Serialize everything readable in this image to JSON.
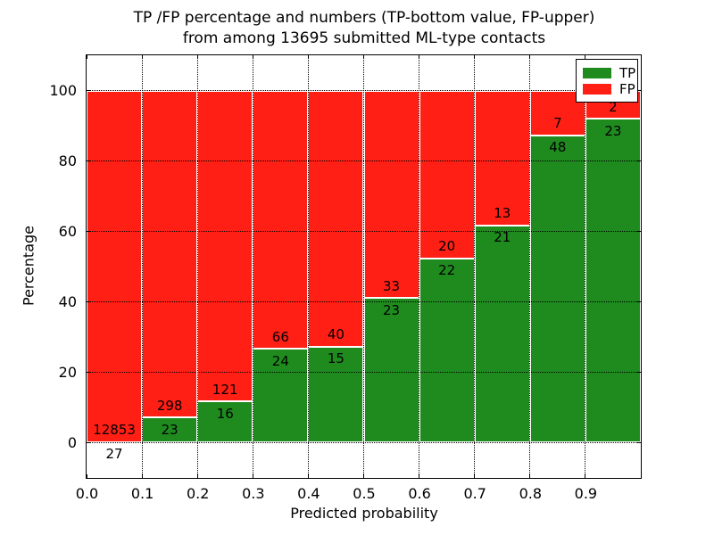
{
  "figure": {
    "background": "#ffffff",
    "frame_color": "#000000"
  },
  "chart_data": {
    "type": "bar",
    "variant": "stacked-percentage",
    "title": "TP /FP percentage and numbers (TP-bottom value, FP-upper)\nfrom among 13695 submitted ML-type contacts",
    "title_line1": "TP /FP percentage and numbers (TP-bottom value, FP-upper)",
    "title_line2": "from among 13695 submitted ML-type contacts",
    "total_submitted": 13695,
    "xlabel": "Predicted probability",
    "ylabel": "Percentage",
    "xlim": [
      0.0,
      1.0
    ],
    "ylim": [
      -10,
      110
    ],
    "bin_width": 0.1,
    "grid": true,
    "x_ticks": [
      "0.0",
      "0.1",
      "0.2",
      "0.3",
      "0.4",
      "0.5",
      "0.6",
      "0.7",
      "0.8",
      "0.9"
    ],
    "y_ticks": [
      "0",
      "20",
      "40",
      "60",
      "80",
      "100"
    ],
    "categories": [
      "0.0-0.1",
      "0.1-0.2",
      "0.2-0.3",
      "0.3-0.4",
      "0.4-0.5",
      "0.5-0.6",
      "0.6-0.7",
      "0.7-0.8",
      "0.8-0.9",
      "0.9-1.0"
    ],
    "series": [
      {
        "name": "TP",
        "color": "#1f8b1f",
        "values": [
          27,
          23,
          16,
          24,
          15,
          23,
          22,
          21,
          48,
          23
        ]
      },
      {
        "name": "FP",
        "color": "#ff1f15",
        "values": [
          12853,
          298,
          121,
          66,
          40,
          33,
          20,
          13,
          7,
          2
        ]
      }
    ],
    "tp_percent": [
      0.21,
      7.17,
      11.68,
      26.67,
      27.27,
      41.07,
      52.38,
      61.76,
      87.27,
      92.0
    ],
    "legend": {
      "position": "upper right",
      "entries": [
        "TP",
        "FP"
      ]
    }
  }
}
